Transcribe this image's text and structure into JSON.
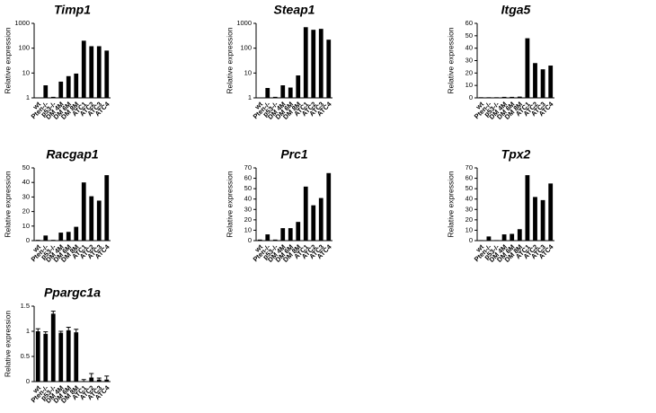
{
  "chart_data": [
    {
      "type": "bar",
      "title": "Timp1",
      "ylabel": "Relative expression",
      "log_scale": true,
      "color": "#000000",
      "categories": [
        "wt",
        "Pten-/-",
        "p53-/-",
        "DM 4M",
        "DM 6M",
        "DM 8M",
        "ATC1",
        "ATC2",
        "ATC3",
        "ATC4"
      ],
      "values": [
        1,
        3.2,
        1.1,
        4.5,
        7.5,
        9.5,
        200,
        120,
        120,
        80
      ],
      "ylim": [
        1,
        1000
      ],
      "yticks": [
        1,
        10,
        100,
        1000
      ]
    },
    {
      "type": "bar",
      "title": "Steap1",
      "ylabel": "Relative expression",
      "log_scale": true,
      "color": "#000000",
      "categories": [
        "wt",
        "Pten-/-",
        "p53-/-",
        "DM 4M",
        "DM 6M",
        "DM 8M",
        "ATC1",
        "ATC2",
        "ATC3",
        "ATC4"
      ],
      "values": [
        1,
        2.5,
        1.1,
        3.2,
        2.6,
        8,
        700,
        550,
        600,
        220
      ],
      "ylim": [
        1,
        1000
      ],
      "yticks": [
        1,
        10,
        100,
        1000
      ]
    },
    {
      "type": "bar",
      "title": "Itga5",
      "ylabel": "Relative expression",
      "log_scale": false,
      "color": "#000000",
      "categories": [
        "wt",
        "Pten-/-",
        "p53-/-",
        "DM 4M",
        "DM 6M",
        "DM 8M",
        "ATC1",
        "ATC2",
        "ATC3",
        "ATC4"
      ],
      "values": [
        0.5,
        0.5,
        0.5,
        0.8,
        0.8,
        1,
        48,
        28,
        23,
        26
      ],
      "ylim": [
        0,
        60
      ],
      "yticks": [
        0,
        10,
        20,
        30,
        40,
        50,
        60
      ]
    },
    {
      "type": "bar",
      "title": "Racgap1",
      "ylabel": "Relative expression",
      "log_scale": false,
      "color": "#000000",
      "categories": [
        "wt",
        "Pten-/-",
        "p53-/-",
        "DM 4M",
        "DM 6M",
        "DM 8M",
        "ATC1",
        "ATC2",
        "ATC3",
        "ATC4"
      ],
      "values": [
        0.5,
        3.5,
        0.5,
        5.5,
        6,
        9.5,
        40,
        30.5,
        27.5,
        45
      ],
      "ylim": [
        0,
        50
      ],
      "yticks": [
        0,
        10,
        20,
        30,
        40,
        50
      ]
    },
    {
      "type": "bar",
      "title": "Prc1",
      "ylabel": "Relative expression",
      "log_scale": false,
      "color": "#000000",
      "categories": [
        "wt",
        "Pten-/-",
        "p53-/-",
        "DM 4M",
        "DM 6M",
        "DM 8M",
        "ATC1",
        "ATC2",
        "ATC3",
        "ATC4"
      ],
      "values": [
        1,
        6,
        1,
        12,
        12,
        18,
        52,
        34,
        41,
        65
      ],
      "ylim": [
        0,
        70
      ],
      "yticks": [
        0,
        10,
        20,
        30,
        40,
        50,
        60,
        70
      ]
    },
    {
      "type": "bar",
      "title": "Tpx2",
      "ylabel": "Relative expression",
      "log_scale": false,
      "color": "#000000",
      "categories": [
        "wt",
        "Pten-/-",
        "p53-/-",
        "DM 4M",
        "DM 6M",
        "DM 8M",
        "ATC1",
        "ATC2",
        "ATC3",
        "ATC4"
      ],
      "values": [
        0.5,
        4,
        0.5,
        6,
        6.5,
        11,
        63,
        42,
        39,
        55
      ],
      "ylim": [
        0,
        70
      ],
      "yticks": [
        0,
        10,
        20,
        30,
        40,
        50,
        60,
        70
      ]
    },
    {
      "type": "bar",
      "title": "Ppargc1a",
      "ylabel": "Relative expression",
      "log_scale": false,
      "color": "#000000",
      "categories": [
        "wt",
        "Pten-/-",
        "p53-/-",
        "DM 4M",
        "DM 6M",
        "DM 8M",
        "ATC1",
        "ATC2",
        "ATC3",
        "ATC4"
      ],
      "values": [
        1.0,
        0.95,
        1.35,
        0.97,
        1.02,
        0.98,
        0.01,
        0.08,
        0.04,
        0.04
      ],
      "errors": [
        0.05,
        0.04,
        0.05,
        0.03,
        0.06,
        0.06,
        0.03,
        0.08,
        0.03,
        0.07
      ],
      "ylim": [
        0,
        1.5
      ],
      "yticks": [
        0,
        0.5,
        1,
        1.5
      ]
    }
  ]
}
